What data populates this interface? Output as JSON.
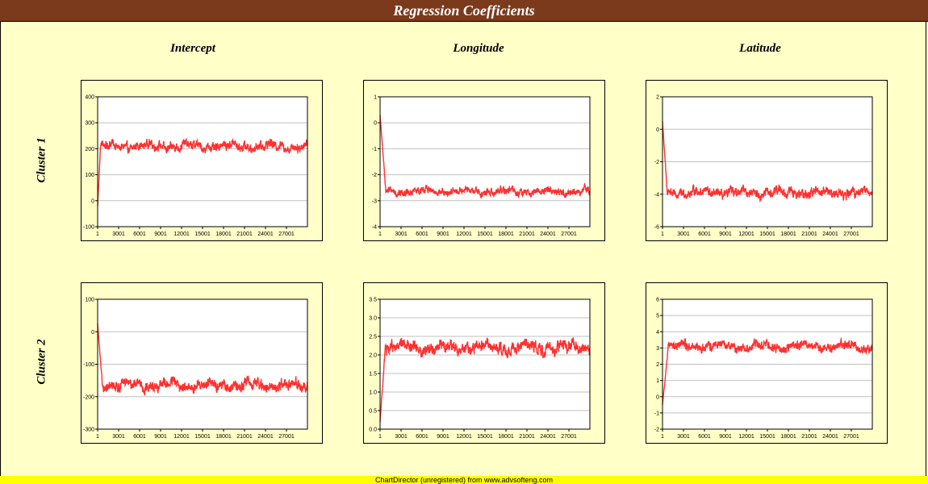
{
  "title": "Regression Coefficients",
  "footer": "ChartDirector (unregistered) from www.advsofteng.com",
  "columns": [
    "Intercept",
    "Longitude",
    "Latitude"
  ],
  "rows": [
    "Cluster 1",
    "Cluster 2"
  ],
  "colors": {
    "series": "#ff3030",
    "plot_bg": "#ffffff",
    "page_bg": "#ffffc8",
    "title_bg": "#7b3a1c",
    "footer_bg": "#ffff00",
    "grid": "#c0c0c0"
  },
  "chart_data": [
    {
      "type": "line",
      "row": "Cluster 1",
      "column": "Intercept",
      "x_ticks": [
        "1",
        "3001",
        "6001",
        "9001",
        "12001",
        "15001",
        "18001",
        "21001",
        "24001",
        "27001"
      ],
      "x_range": [
        1,
        30000
      ],
      "y_ticks": [
        -100,
        0,
        100,
        200,
        300,
        400
      ],
      "ylim": [
        -100,
        400
      ],
      "start": -20,
      "level": 210,
      "noise": 22,
      "burnin": 500,
      "grid": true
    },
    {
      "type": "line",
      "row": "Cluster 1",
      "column": "Longitude",
      "x_ticks": [
        "1",
        "3001",
        "6001",
        "9001",
        "12001",
        "15001",
        "18001",
        "21001",
        "24001",
        "27001"
      ],
      "x_range": [
        1,
        30000
      ],
      "y_ticks": [
        -4,
        -3,
        -2,
        -1,
        0,
        1
      ],
      "ylim": [
        -4,
        1
      ],
      "start": 0.3,
      "level": -2.65,
      "noise": 0.18,
      "burnin": 1000,
      "grid": true
    },
    {
      "type": "line",
      "row": "Cluster 1",
      "column": "Latitude",
      "x_ticks": [
        "1",
        "3001",
        "6001",
        "9001",
        "12001",
        "15001",
        "18001",
        "21001",
        "24001",
        "27001"
      ],
      "x_range": [
        1,
        30000
      ],
      "y_ticks": [
        -6,
        -4,
        -2,
        0,
        2
      ],
      "ylim": [
        -6,
        2
      ],
      "start": 0.5,
      "level": -3.9,
      "noise": 0.35,
      "burnin": 800,
      "grid": true
    },
    {
      "type": "line",
      "row": "Cluster 2",
      "column": "Intercept",
      "x_ticks": [
        "1",
        "3001",
        "6001",
        "9001",
        "12001",
        "15001",
        "18001",
        "21001",
        "24001",
        "27001"
      ],
      "x_range": [
        1,
        30000
      ],
      "y_ticks": [
        -300,
        -200,
        -100,
        0,
        100
      ],
      "ylim": [
        -300,
        100
      ],
      "start": 25,
      "level": -165,
      "noise": 20,
      "burnin": 800,
      "grid": true
    },
    {
      "type": "line",
      "row": "Cluster 2",
      "column": "Longitude",
      "x_ticks": [
        "1",
        "3001",
        "6001",
        "9001",
        "12001",
        "15001",
        "18001",
        "21001",
        "24001",
        "27001"
      ],
      "x_range": [
        1,
        30000
      ],
      "y_ticks": [
        0.0,
        0.5,
        1.0,
        1.5,
        2.0,
        2.5,
        3.0,
        3.5
      ],
      "ylim": [
        0,
        3.5
      ],
      "y_tick_labels": [
        "0.0",
        "0.5",
        "1.0",
        "1.5",
        "2.0",
        "2.5",
        "3.0",
        "3.5"
      ],
      "start": 0.2,
      "level": 2.2,
      "noise": 0.2,
      "burnin": 900,
      "grid": true
    },
    {
      "type": "line",
      "row": "Cluster 2",
      "column": "Latitude",
      "x_ticks": [
        "1",
        "3001",
        "6001",
        "9001",
        "12001",
        "15001",
        "18001",
        "21001",
        "24001",
        "27001"
      ],
      "x_range": [
        1,
        30000
      ],
      "y_ticks": [
        -2,
        -1,
        0,
        1,
        2,
        3,
        4,
        5,
        6
      ],
      "ylim": [
        -2,
        6
      ],
      "start": -0.5,
      "level": 3.1,
      "noise": 0.35,
      "burnin": 1000,
      "grid": true
    }
  ]
}
